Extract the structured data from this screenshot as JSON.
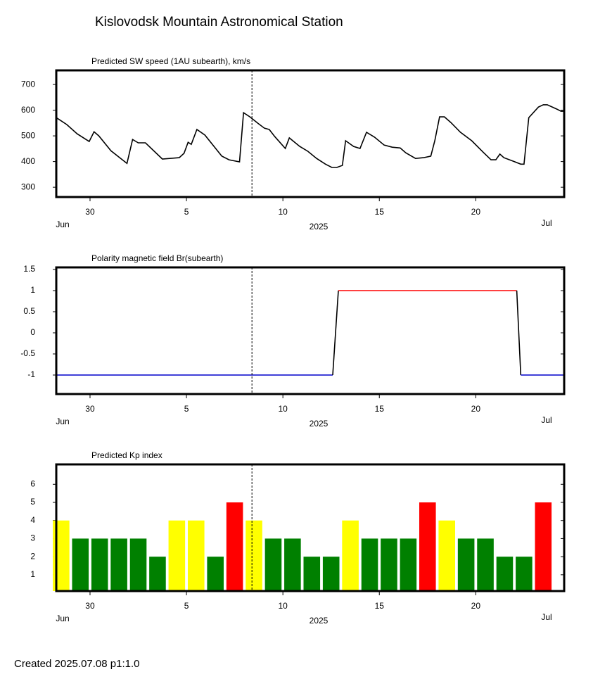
{
  "title": "Kislovodsk Mountain Astronomical Station",
  "footer": "Created  2025.07.08    p1:1.0",
  "chart_data": [
    {
      "type": "line",
      "title": "Predicted SW speed (1AU subearth), km/s",
      "xlabel": "2025",
      "month_labels": [
        "Jun",
        "Jul"
      ],
      "xlim": [
        "2025-06-28T06:00",
        "2025-07-24T14:00"
      ],
      "xticks": [
        {
          "value": "2025-06-30",
          "label": "30"
        },
        {
          "value": "2025-07-05",
          "label": "5"
        },
        {
          "value": "2025-07-10",
          "label": "10"
        },
        {
          "value": "2025-07-15",
          "label": "15"
        },
        {
          "value": "2025-07-20",
          "label": "20"
        }
      ],
      "ylim": [
        262,
        755
      ],
      "yticks": [
        300,
        400,
        500,
        600,
        700
      ],
      "marker_x": "2025-07-08T09:30",
      "series": [
        {
          "color": "#000000",
          "x": [
            "2025-06-28T06:00",
            "2025-06-28T19:00",
            "2025-06-29T08:00",
            "2025-06-29T23:00",
            "2025-06-30T05:00",
            "2025-06-30T11:00",
            "2025-07-01T02:00",
            "2025-07-01T22:00",
            "2025-07-02T05:00",
            "2025-07-02T12:00",
            "2025-07-02T21:00",
            "2025-07-03T18:00",
            "2025-07-04T15:00",
            "2025-07-04T21:00",
            "2025-07-05T02:00",
            "2025-07-05T06:00",
            "2025-07-05T13:00",
            "2025-07-05T23:00",
            "2025-07-06T20:00",
            "2025-07-07T05:00",
            "2025-07-07T18:00",
            "2025-07-07T23:00",
            "2025-07-08T07:00",
            "2025-07-08T17:00",
            "2025-07-09T01:00",
            "2025-07-09T07:00",
            "2025-07-09T14:00",
            "2025-07-10T03:00",
            "2025-07-10T08:00",
            "2025-07-10T21:00",
            "2025-07-11T07:00",
            "2025-07-11T18:00",
            "2025-07-12T05:00",
            "2025-07-12T13:00",
            "2025-07-12T19:00",
            "2025-07-13T02:00",
            "2025-07-13T06:00",
            "2025-07-13T16:00",
            "2025-07-14T00:00",
            "2025-07-14T08:00",
            "2025-07-14T18:00",
            "2025-07-15T06:00",
            "2025-07-15T16:00",
            "2025-07-16T02:00",
            "2025-07-16T09:00",
            "2025-07-16T21:00",
            "2025-07-17T07:00",
            "2025-07-17T16:00",
            "2025-07-17T21:00",
            "2025-07-18T03:00",
            "2025-07-18T09:00",
            "2025-07-18T17:00",
            "2025-07-19T05:00",
            "2025-07-19T19:00",
            "2025-07-20T09:00",
            "2025-07-20T19:00",
            "2025-07-21T01:00",
            "2025-07-21T06:00",
            "2025-07-21T11:00",
            "2025-07-21T23:00",
            "2025-07-22T08:00",
            "2025-07-22T12:00",
            "2025-07-22T18:00",
            "2025-07-23T06:00",
            "2025-07-23T12:00",
            "2025-07-23T17:00",
            "2025-07-24T05:00",
            "2025-07-24T10:00",
            "2025-07-24T14:00"
          ],
          "values": [
            571,
            544,
            508,
            478,
            516,
            500,
            442,
            393,
            486,
            473,
            473,
            410,
            415,
            432,
            475,
            467,
            525,
            503,
            421,
            407,
            399,
            590,
            574,
            549,
            530,
            525,
            497,
            451,
            492,
            459,
            440,
            412,
            390,
            377,
            377,
            385,
            481,
            459,
            451,
            514,
            495,
            464,
            456,
            453,
            434,
            412,
            415,
            421,
            481,
            574,
            574,
            552,
            514,
            481,
            437,
            407,
            407,
            429,
            415,
            401,
            390,
            390,
            571,
            612,
            621,
            621,
            604,
            596,
            596
          ]
        }
      ]
    },
    {
      "type": "line",
      "title": "Polarity magnetic field  Br(subearth)",
      "xlabel": "2025",
      "month_labels": [
        "Jun",
        "Jul"
      ],
      "xlim": [
        "2025-06-28T06:00",
        "2025-07-24T14:00"
      ],
      "xticks": [
        {
          "value": "2025-06-30",
          "label": "30"
        },
        {
          "value": "2025-07-05",
          "label": "5"
        },
        {
          "value": "2025-07-10",
          "label": "10"
        },
        {
          "value": "2025-07-15",
          "label": "15"
        },
        {
          "value": "2025-07-20",
          "label": "20"
        }
      ],
      "ylim": [
        -1.45,
        1.55
      ],
      "yticks": [
        -1,
        -0.5,
        0,
        0.5,
        1,
        1.5
      ],
      "marker_x": "2025-07-08T09:30",
      "series": [
        {
          "color": "#0000cc",
          "x": [
            "2025-06-28T06:00",
            "2025-07-12T14:00"
          ],
          "values": [
            -1,
            -1
          ]
        },
        {
          "color": "#000000",
          "x": [
            "2025-07-12T14:00",
            "2025-07-12T21:00"
          ],
          "values": [
            -1,
            1
          ]
        },
        {
          "color": "#ff0000",
          "x": [
            "2025-07-12T21:00",
            "2025-07-22T03:00"
          ],
          "values": [
            1,
            1
          ]
        },
        {
          "color": "#000000",
          "x": [
            "2025-07-22T03:00",
            "2025-07-22T08:00"
          ],
          "values": [
            1,
            -1
          ]
        },
        {
          "color": "#0000cc",
          "x": [
            "2025-07-22T08:00",
            "2025-07-24T14:00"
          ],
          "values": [
            -1,
            -1
          ]
        }
      ]
    },
    {
      "type": "bar",
      "title": "Predicted Kp index",
      "xlabel": "2025",
      "month_labels": [
        "Jun",
        "Jul"
      ],
      "xlim": [
        "2025-06-28T06:00",
        "2025-07-24T14:00"
      ],
      "xticks": [
        {
          "value": "2025-06-30",
          "label": "30"
        },
        {
          "value": "2025-07-05",
          "label": "5"
        },
        {
          "value": "2025-07-10",
          "label": "10"
        },
        {
          "value": "2025-07-15",
          "label": "15"
        },
        {
          "value": "2025-07-20",
          "label": "20"
        }
      ],
      "ylim": [
        0.1,
        7.1
      ],
      "yticks": [
        1,
        2,
        3,
        4,
        5,
        6
      ],
      "marker_x": "2025-07-08T09:30",
      "x": [
        "2025-06-28",
        "2025-06-29",
        "2025-06-30",
        "2025-07-01",
        "2025-07-02",
        "2025-07-03",
        "2025-07-04",
        "2025-07-05",
        "2025-07-06",
        "2025-07-07",
        "2025-07-08",
        "2025-07-09",
        "2025-07-10",
        "2025-07-11",
        "2025-07-12",
        "2025-07-13",
        "2025-07-14",
        "2025-07-15",
        "2025-07-16",
        "2025-07-17",
        "2025-07-18",
        "2025-07-19",
        "2025-07-20",
        "2025-07-21",
        "2025-07-22",
        "2025-07-23"
      ],
      "values": [
        4,
        3,
        3,
        3,
        3,
        2,
        4,
        4,
        2,
        5,
        4,
        3,
        3,
        2,
        2,
        4,
        3,
        3,
        3,
        5,
        4,
        3,
        3,
        2,
        2,
        5
      ],
      "colors": [
        "#ffff00",
        "#008000",
        "#008000",
        "#008000",
        "#008000",
        "#008000",
        "#ffff00",
        "#ffff00",
        "#008000",
        "#ff0000",
        "#ffff00",
        "#008000",
        "#008000",
        "#008000",
        "#008000",
        "#ffff00",
        "#008000",
        "#008000",
        "#008000",
        "#ff0000",
        "#ffff00",
        "#008000",
        "#008000",
        "#008000",
        "#008000",
        "#ff0000"
      ]
    }
  ]
}
